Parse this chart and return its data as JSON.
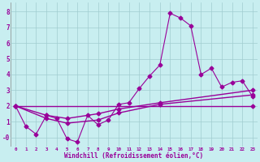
{
  "xlabel": "Windchill (Refroidissement éolien,°C)",
  "background_color": "#c8eef0",
  "grid_color": "#a0ccd0",
  "line_color": "#990099",
  "xlim": [
    -0.5,
    23.5
  ],
  "ylim": [
    -0.6,
    8.6
  ],
  "xticks": [
    0,
    1,
    2,
    3,
    4,
    5,
    6,
    7,
    8,
    9,
    10,
    11,
    12,
    13,
    14,
    15,
    16,
    17,
    18,
    19,
    20,
    21,
    22,
    23
  ],
  "yticks": [
    0,
    1,
    2,
    3,
    4,
    5,
    6,
    7,
    8
  ],
  "ytick_labels": [
    "-0",
    "1",
    "2",
    "3",
    "4",
    "5",
    "6",
    "7",
    "8"
  ],
  "series1_x": [
    0,
    1,
    2,
    3,
    4,
    5,
    6,
    7,
    8,
    9,
    10,
    11,
    12,
    13,
    14,
    15,
    16,
    17,
    18,
    19,
    20,
    21,
    22,
    23
  ],
  "series1_y": [
    2.0,
    0.7,
    0.2,
    1.4,
    1.2,
    -0.1,
    -0.3,
    1.4,
    0.8,
    1.1,
    2.1,
    2.2,
    3.1,
    3.9,
    4.6,
    7.9,
    7.6,
    7.1,
    4.0,
    4.4,
    3.2,
    3.5,
    3.6,
    2.6
  ],
  "line2_x": [
    0,
    23
  ],
  "line2_y": [
    2.0,
    2.0
  ],
  "line3_x": [
    0,
    3,
    5,
    8,
    10,
    14,
    23
  ],
  "line3_y": [
    2.0,
    1.4,
    1.2,
    1.5,
    1.8,
    2.2,
    3.0
  ],
  "line4_x": [
    0,
    3,
    5,
    8,
    10,
    14,
    23
  ],
  "line4_y": [
    2.0,
    1.2,
    0.9,
    1.1,
    1.55,
    2.1,
    2.7
  ]
}
